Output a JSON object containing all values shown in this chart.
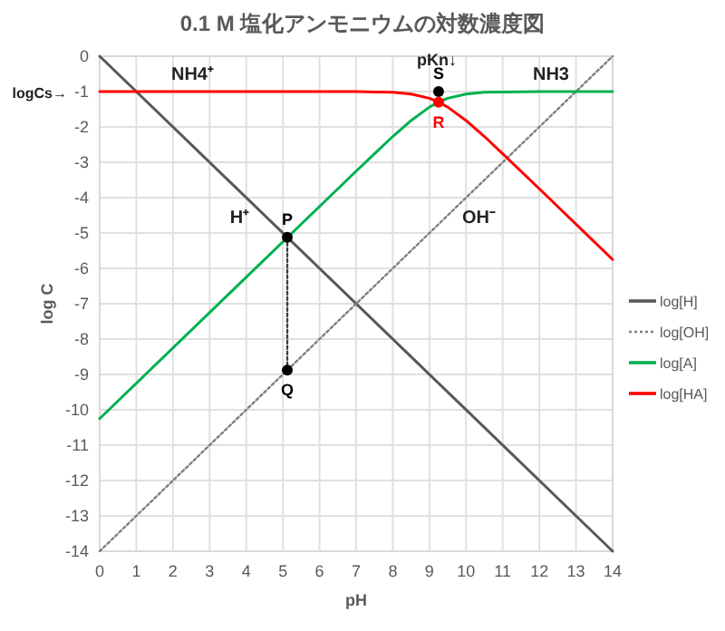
{
  "chart_data": {
    "type": "line",
    "title": "0.1 M 塩化アンモニウムの対数濃度図",
    "xlabel": "pH",
    "ylabel": "log C",
    "xlim": [
      0,
      14
    ],
    "ylim": [
      -14,
      0
    ],
    "xticks": [
      0,
      1,
      2,
      3,
      4,
      5,
      6,
      7,
      8,
      9,
      10,
      11,
      12,
      13,
      14
    ],
    "yticks": [
      0,
      -1,
      -2,
      -3,
      -4,
      -5,
      -6,
      -7,
      -8,
      -9,
      -10,
      -11,
      -12,
      -13,
      -14
    ],
    "grid": true,
    "legend": "right",
    "series": [
      {
        "name": "log[H]",
        "color": "#595959",
        "line_style": "solid",
        "x": [
          0,
          14
        ],
        "values": [
          0,
          -14
        ]
      },
      {
        "name": "log[OH]",
        "color": "#7f7f7f",
        "line_style": "dotted",
        "x": [
          0,
          14
        ],
        "values": [
          -14,
          0
        ]
      },
      {
        "name": "log[A]",
        "color": "#00b050",
        "line_style": "solid",
        "x": [
          0,
          6,
          7,
          7.5,
          8,
          8.5,
          9,
          9.25,
          9.5,
          10,
          10.5,
          11,
          12,
          14
        ],
        "values": [
          -10.25,
          -4.25,
          -3.25,
          -2.76,
          -2.27,
          -1.82,
          -1.44,
          -1.3,
          -1.19,
          -1.07,
          -1.02,
          -1.01,
          -1,
          -1
        ]
      },
      {
        "name": "log[HA]",
        "color": "#ff0000",
        "line_style": "solid",
        "x": [
          0,
          7,
          7.5,
          8,
          8.5,
          9,
          9.25,
          9.5,
          10,
          10.5,
          11,
          12,
          14
        ],
        "values": [
          -1,
          -1,
          -1.01,
          -1.02,
          -1.07,
          -1.19,
          -1.3,
          -1.44,
          -1.82,
          -2.27,
          -2.76,
          -3.75,
          -5.75
        ]
      },
      {
        "type": "line",
        "color": "#404040",
        "line_style": "dotted",
        "x": [
          5.12,
          5.12
        ],
        "values": [
          -5.12,
          -8.88
        ]
      },
      {
        "type": "scatter",
        "marker": "circle",
        "colors": [
          "#000000",
          "#000000",
          "#000000",
          "#ff0000"
        ],
        "x": [
          5.12,
          5.12,
          9.25,
          9.25
        ],
        "values": [
          -5.12,
          -8.88,
          -1,
          -1.3
        ],
        "value_labels": [
          "P",
          "Q",
          "S",
          "R"
        ]
      }
    ],
    "annotations": [
      "NH4⁺",
      "NH3",
      "H⁺",
      "OH⁻",
      "pKn↓",
      "logCs→"
    ]
  }
}
